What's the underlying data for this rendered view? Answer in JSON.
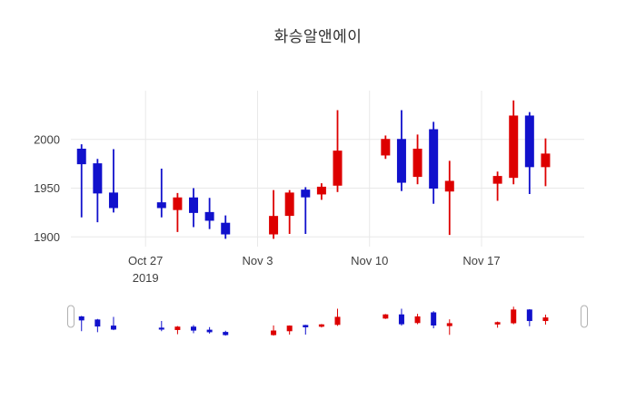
{
  "title": "화승알앤에이",
  "colors": {
    "increasing": "#dd0000",
    "decreasing": "#1111cc",
    "grid": "#e8e8e8",
    "tick_text": "#3f3f3f",
    "title_text": "#2f2f2f",
    "background": "#ffffff",
    "handle_fill": "#ffffff",
    "handle_border": "#b0b0b0"
  },
  "chart_data": {
    "type": "candlestick",
    "title": "화승알앤에이",
    "x": [
      "2019-10-23",
      "2019-10-24",
      "2019-10-25",
      "2019-10-28",
      "2019-10-29",
      "2019-10-30",
      "2019-10-31",
      "2019-11-01",
      "2019-11-04",
      "2019-11-05",
      "2019-11-06",
      "2019-11-07",
      "2019-11-08",
      "2019-11-11",
      "2019-11-12",
      "2019-11-13",
      "2019-11-14",
      "2019-11-15",
      "2019-11-18",
      "2019-11-19",
      "2019-11-20",
      "2019-11-21"
    ],
    "open": [
      1990,
      1975,
      1945,
      1935,
      1928,
      1940,
      1925,
      1914,
      1903,
      1922,
      1948,
      1944,
      1953,
      1984,
      2000,
      1962,
      2010,
      1947,
      1955,
      1961,
      2024,
      1972
    ],
    "high": [
      1995,
      1980,
      1990,
      1970,
      1945,
      1950,
      1940,
      1922,
      1948,
      1948,
      1951,
      1955,
      2030,
      2004,
      2030,
      2005,
      2018,
      1978,
      1967,
      2040,
      2028,
      2001
    ],
    "low": [
      1920,
      1915,
      1925,
      1920,
      1905,
      1910,
      1908,
      1898,
      1898,
      1903,
      1903,
      1938,
      1946,
      1980,
      1947,
      1954,
      1934,
      1902,
      1937,
      1954,
      1944,
      1952
    ],
    "close": [
      1975,
      1945,
      1930,
      1930,
      1940,
      1925,
      1917,
      1903,
      1921,
      1945,
      1941,
      1951,
      1988,
      2000,
      1956,
      1990,
      1950,
      1957,
      1962,
      2024,
      1972,
      1985
    ],
    "ylim": [
      1890,
      2050
    ],
    "yticks": [
      1900,
      1950,
      2000
    ],
    "xticks": [
      {
        "date": "2019-10-27",
        "label": "Oct 27",
        "sublabel": "2019"
      },
      {
        "date": "2019-11-03",
        "label": "Nov 3",
        "sublabel": ""
      },
      {
        "date": "2019-11-10",
        "label": "Nov 10",
        "sublabel": ""
      },
      {
        "date": "2019-11-17",
        "label": "Nov 17",
        "sublabel": ""
      }
    ],
    "x_range": [
      "2019-10-22T08:00:00Z",
      "2019-11-23T10:00:00Z"
    ],
    "grid": true,
    "legend": "none",
    "rangeslider": true
  }
}
